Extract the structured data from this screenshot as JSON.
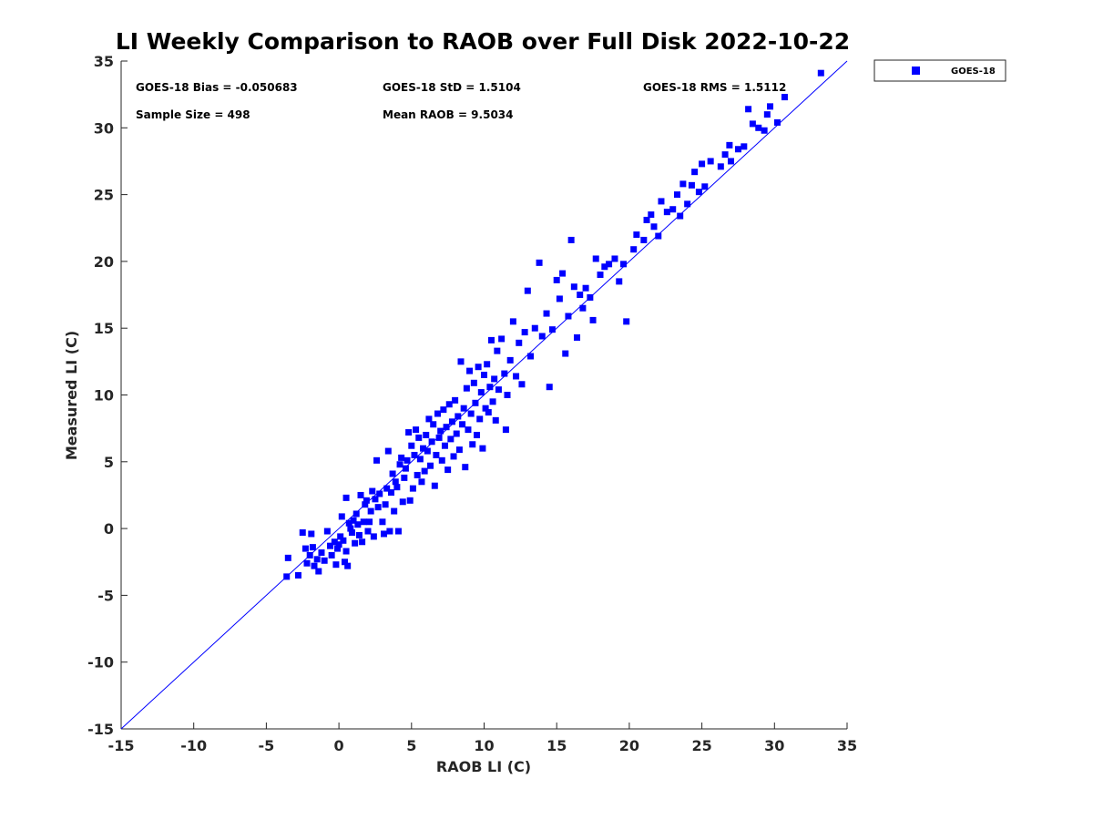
{
  "chart_data": {
    "type": "scatter",
    "title": "LI Weekly Comparison to RAOB over Full Disk 2022-10-22",
    "xlabel": "RAOB LI (C)",
    "ylabel": "Measured LI (C)",
    "xlim": [
      -15,
      35
    ],
    "ylim": [
      -15,
      35
    ],
    "xticks": [
      -15,
      -10,
      -5,
      0,
      5,
      10,
      15,
      20,
      25,
      30,
      35
    ],
    "yticks": [
      -15,
      -10,
      -5,
      0,
      5,
      10,
      15,
      20,
      25,
      30,
      35
    ],
    "xtick_labels": [
      "-15",
      "-10",
      "-5",
      "0",
      "5",
      "10",
      "15",
      "20",
      "25",
      "30",
      "35"
    ],
    "ytick_labels": [
      "-15",
      "-10",
      "-5",
      "0",
      "5",
      "10",
      "15",
      "20",
      "25",
      "30",
      "35"
    ],
    "grid": false,
    "legend_position": "outside-top-right",
    "reference_line": {
      "from": [
        -15,
        -15
      ],
      "to": [
        35,
        35
      ],
      "color": "#0000ff"
    },
    "annotations": [
      "GOES-18 Bias = -0.050683",
      "GOES-18 StD = 1.5104",
      "GOES-18 RMS = 1.5112",
      "Sample Size = 498",
      "Mean RAOB = 9.5034"
    ],
    "series": [
      {
        "name": "GOES-18",
        "color": "#0000ff",
        "marker": "square",
        "points": [
          [
            -3.6,
            -3.6
          ],
          [
            -3.5,
            -2.2
          ],
          [
            -2.8,
            -3.5
          ],
          [
            -2.5,
            -0.3
          ],
          [
            -2.3,
            -1.5
          ],
          [
            -2.2,
            -2.6
          ],
          [
            -2.0,
            -2.0
          ],
          [
            -1.9,
            -0.4
          ],
          [
            -1.8,
            -1.4
          ],
          [
            -1.7,
            -2.8
          ],
          [
            -1.5,
            -2.3
          ],
          [
            -1.4,
            -3.2
          ],
          [
            -1.2,
            -1.8
          ],
          [
            -1.0,
            -2.4
          ],
          [
            -0.8,
            -0.2
          ],
          [
            -0.6,
            -1.3
          ],
          [
            -0.5,
            -2.0
          ],
          [
            -0.3,
            -1.0
          ],
          [
            -0.2,
            -2.7
          ],
          [
            -0.1,
            -1.5
          ],
          [
            0.0,
            -1.2
          ],
          [
            0.1,
            -0.6
          ],
          [
            0.2,
            0.9
          ],
          [
            0.3,
            -0.9
          ],
          [
            0.4,
            -2.5
          ],
          [
            0.5,
            -1.7
          ],
          [
            0.5,
            2.3
          ],
          [
            0.6,
            -2.8
          ],
          [
            0.7,
            0.4
          ],
          [
            0.8,
            0.0
          ],
          [
            0.9,
            -0.3
          ],
          [
            1.0,
            0.6
          ],
          [
            1.1,
            -1.1
          ],
          [
            1.2,
            1.1
          ],
          [
            1.3,
            0.3
          ],
          [
            1.4,
            -0.5
          ],
          [
            1.5,
            2.5
          ],
          [
            1.6,
            -1.0
          ],
          [
            1.7,
            0.5
          ],
          [
            1.8,
            1.8
          ],
          [
            1.9,
            2.1
          ],
          [
            2.0,
            -0.2
          ],
          [
            2.1,
            0.5
          ],
          [
            2.2,
            1.3
          ],
          [
            2.3,
            2.8
          ],
          [
            2.4,
            -0.6
          ],
          [
            2.5,
            2.2
          ],
          [
            2.6,
            5.1
          ],
          [
            2.7,
            1.6
          ],
          [
            2.8,
            2.6
          ],
          [
            3.0,
            0.5
          ],
          [
            3.1,
            -0.4
          ],
          [
            3.2,
            1.8
          ],
          [
            3.3,
            3.0
          ],
          [
            3.4,
            5.8
          ],
          [
            3.5,
            -0.2
          ],
          [
            3.6,
            2.7
          ],
          [
            3.7,
            4.1
          ],
          [
            3.8,
            1.3
          ],
          [
            3.9,
            3.5
          ],
          [
            4.0,
            3.1
          ],
          [
            4.1,
            -0.2
          ],
          [
            4.2,
            4.8
          ],
          [
            4.3,
            5.3
          ],
          [
            4.4,
            2.0
          ],
          [
            4.5,
            3.8
          ],
          [
            4.6,
            4.5
          ],
          [
            4.7,
            5.1
          ],
          [
            4.8,
            7.2
          ],
          [
            4.9,
            2.1
          ],
          [
            5.0,
            6.2
          ],
          [
            5.1,
            3.0
          ],
          [
            5.2,
            5.5
          ],
          [
            5.3,
            7.4
          ],
          [
            5.4,
            4.0
          ],
          [
            5.5,
            6.8
          ],
          [
            5.6,
            5.2
          ],
          [
            5.7,
            3.5
          ],
          [
            5.8,
            6.0
          ],
          [
            5.9,
            4.3
          ],
          [
            6.0,
            7.0
          ],
          [
            6.1,
            5.8
          ],
          [
            6.2,
            8.2
          ],
          [
            6.3,
            4.7
          ],
          [
            6.4,
            6.5
          ],
          [
            6.5,
            7.8
          ],
          [
            6.6,
            3.2
          ],
          [
            6.7,
            5.5
          ],
          [
            6.8,
            8.6
          ],
          [
            6.9,
            6.8
          ],
          [
            7.0,
            7.3
          ],
          [
            7.1,
            5.1
          ],
          [
            7.2,
            8.9
          ],
          [
            7.3,
            6.2
          ],
          [
            7.4,
            7.6
          ],
          [
            7.5,
            4.4
          ],
          [
            7.6,
            9.3
          ],
          [
            7.7,
            6.7
          ],
          [
            7.8,
            8.0
          ],
          [
            7.9,
            5.4
          ],
          [
            8.0,
            9.6
          ],
          [
            8.1,
            7.1
          ],
          [
            8.2,
            8.4
          ],
          [
            8.3,
            5.9
          ],
          [
            8.4,
            12.5
          ],
          [
            8.5,
            7.8
          ],
          [
            8.6,
            9.0
          ],
          [
            8.7,
            4.6
          ],
          [
            8.8,
            10.5
          ],
          [
            8.9,
            7.4
          ],
          [
            9.0,
            11.8
          ],
          [
            9.1,
            8.6
          ],
          [
            9.2,
            6.3
          ],
          [
            9.3,
            10.9
          ],
          [
            9.4,
            9.4
          ],
          [
            9.5,
            7.0
          ],
          [
            9.6,
            12.1
          ],
          [
            9.7,
            8.2
          ],
          [
            9.8,
            10.2
          ],
          [
            9.9,
            6.0
          ],
          [
            10.0,
            11.5
          ],
          [
            10.1,
            9.0
          ],
          [
            10.2,
            12.3
          ],
          [
            10.3,
            8.7
          ],
          [
            10.4,
            10.6
          ],
          [
            10.5,
            14.1
          ],
          [
            10.6,
            9.5
          ],
          [
            10.7,
            11.2
          ],
          [
            10.8,
            8.1
          ],
          [
            10.9,
            13.3
          ],
          [
            11.0,
            10.4
          ],
          [
            11.2,
            14.2
          ],
          [
            11.4,
            11.6
          ],
          [
            11.5,
            7.4
          ],
          [
            11.6,
            10.0
          ],
          [
            11.8,
            12.6
          ],
          [
            12.0,
            15.5
          ],
          [
            12.2,
            11.4
          ],
          [
            12.4,
            13.9
          ],
          [
            12.6,
            10.8
          ],
          [
            12.8,
            14.7
          ],
          [
            13.0,
            17.8
          ],
          [
            13.2,
            12.9
          ],
          [
            13.5,
            15.0
          ],
          [
            13.8,
            19.9
          ],
          [
            14.0,
            14.4
          ],
          [
            14.3,
            16.1
          ],
          [
            14.5,
            10.6
          ],
          [
            14.7,
            14.9
          ],
          [
            15.0,
            18.6
          ],
          [
            15.2,
            17.2
          ],
          [
            15.4,
            19.1
          ],
          [
            15.6,
            13.1
          ],
          [
            15.8,
            15.9
          ],
          [
            16.0,
            21.6
          ],
          [
            16.2,
            18.1
          ],
          [
            16.4,
            14.3
          ],
          [
            16.6,
            17.5
          ],
          [
            16.8,
            16.5
          ],
          [
            17.0,
            18.0
          ],
          [
            17.3,
            17.3
          ],
          [
            17.5,
            15.6
          ],
          [
            17.7,
            20.2
          ],
          [
            18.0,
            19.0
          ],
          [
            18.3,
            19.6
          ],
          [
            18.6,
            19.8
          ],
          [
            19.0,
            20.2
          ],
          [
            19.3,
            18.5
          ],
          [
            19.6,
            19.8
          ],
          [
            19.8,
            15.5
          ],
          [
            20.3,
            20.9
          ],
          [
            20.5,
            22.0
          ],
          [
            21.0,
            21.6
          ],
          [
            21.2,
            23.1
          ],
          [
            21.5,
            23.5
          ],
          [
            21.7,
            22.6
          ],
          [
            22.0,
            21.9
          ],
          [
            22.2,
            24.5
          ],
          [
            22.6,
            23.7
          ],
          [
            23.0,
            23.9
          ],
          [
            23.3,
            25.0
          ],
          [
            23.5,
            23.4
          ],
          [
            23.7,
            25.8
          ],
          [
            24.0,
            24.3
          ],
          [
            24.3,
            25.7
          ],
          [
            24.5,
            26.7
          ],
          [
            24.8,
            25.2
          ],
          [
            25.0,
            27.3
          ],
          [
            25.2,
            25.6
          ],
          [
            25.6,
            27.5
          ],
          [
            26.3,
            27.1
          ],
          [
            26.6,
            28.0
          ],
          [
            26.9,
            28.7
          ],
          [
            27.0,
            27.5
          ],
          [
            27.5,
            28.4
          ],
          [
            27.9,
            28.6
          ],
          [
            28.2,
            31.4
          ],
          [
            28.5,
            30.3
          ],
          [
            28.9,
            30.0
          ],
          [
            29.3,
            29.8
          ],
          [
            29.5,
            31.0
          ],
          [
            29.7,
            31.6
          ],
          [
            30.2,
            30.4
          ],
          [
            30.7,
            32.3
          ],
          [
            33.2,
            34.1
          ]
        ]
      }
    ]
  }
}
